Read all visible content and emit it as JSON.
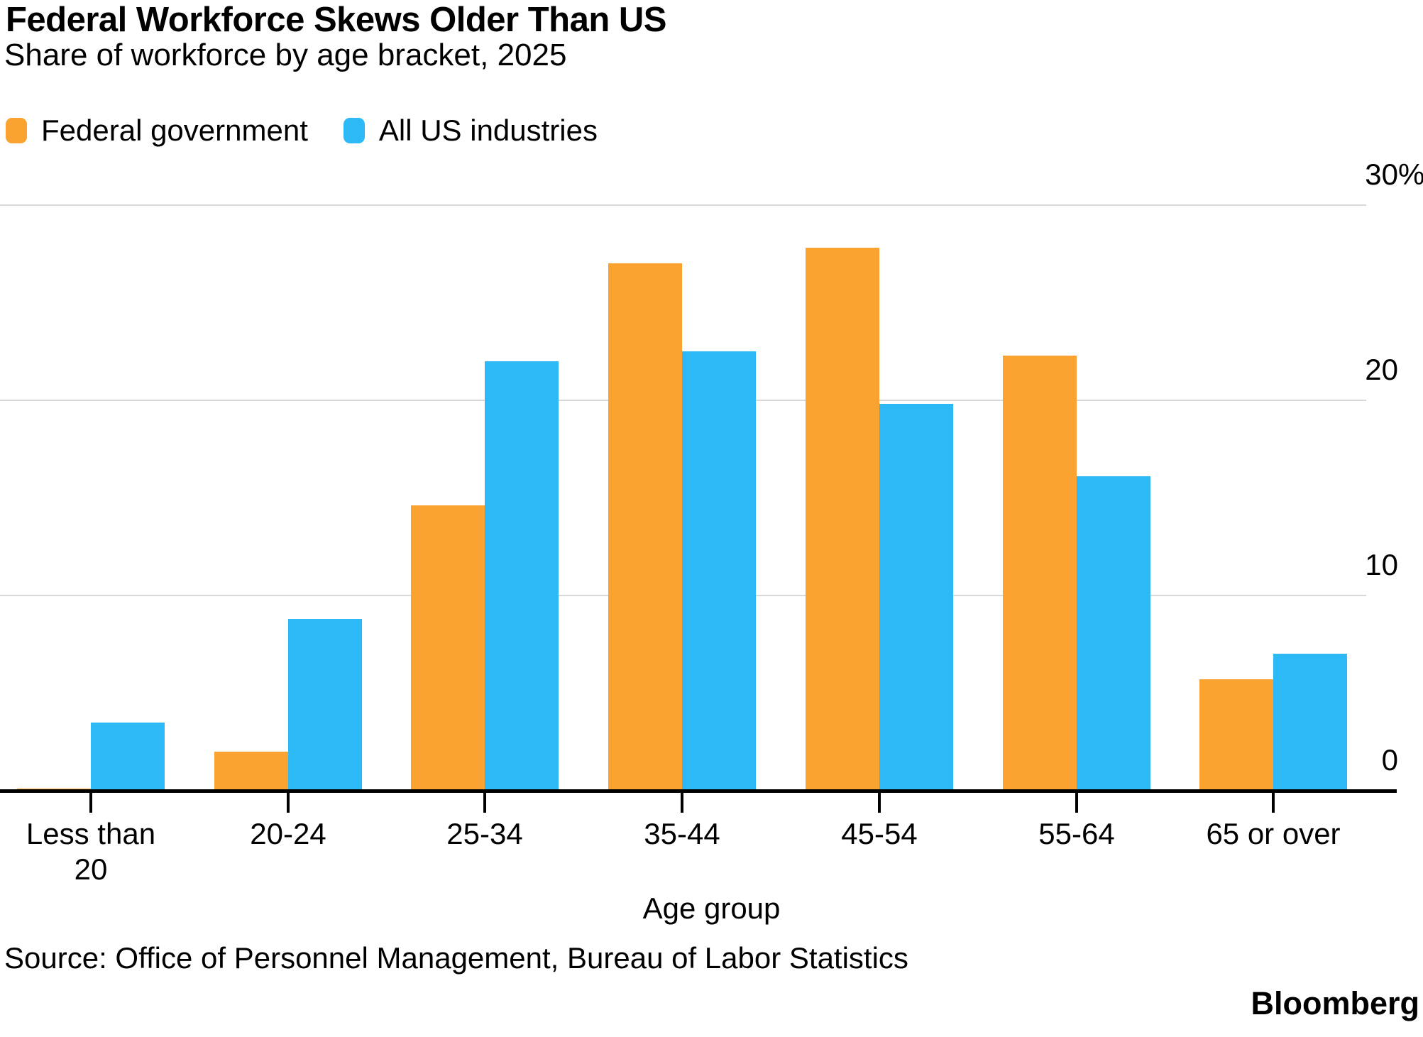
{
  "header": {
    "title": "Federal Workforce Skews Older Than US",
    "subtitle": "Share of workforce by age bracket, 2025"
  },
  "legend": [
    {
      "label": "Federal government",
      "color": "#FAA331"
    },
    {
      "label": "All US industries",
      "color": "#2CB9F5"
    }
  ],
  "chart_data": {
    "type": "bar",
    "title": "Federal Workforce Skews Older Than US",
    "subtitle": "Share of workforce by age bracket, 2025",
    "categories": [
      "Less than 20",
      "20-24",
      "25-34",
      "35-44",
      "45-54",
      "55-64",
      "65 or over"
    ],
    "series": [
      {
        "name": "Federal government",
        "color": "#FAA331",
        "values": [
          0.1,
          2.0,
          14.6,
          27.0,
          27.8,
          22.3,
          5.7
        ]
      },
      {
        "name": "All US industries",
        "color": "#2CB9F5",
        "values": [
          3.5,
          8.8,
          22.0,
          22.5,
          19.8,
          16.1,
          7.0
        ]
      }
    ],
    "xlabel": "Age group",
    "ylabel": "",
    "unit": "%",
    "ylim": [
      0,
      30
    ],
    "y_ticks": [
      {
        "value": 30,
        "label": "30%"
      },
      {
        "value": 20,
        "label": "20"
      },
      {
        "value": 10,
        "label": "10"
      },
      {
        "value": 0,
        "label": "0"
      }
    ],
    "grid": "horizontal",
    "legend_position": "top-left"
  },
  "footer": {
    "source": "Source: Office of Personnel Management, Bureau of Labor Statistics",
    "brand": "Bloomberg"
  }
}
